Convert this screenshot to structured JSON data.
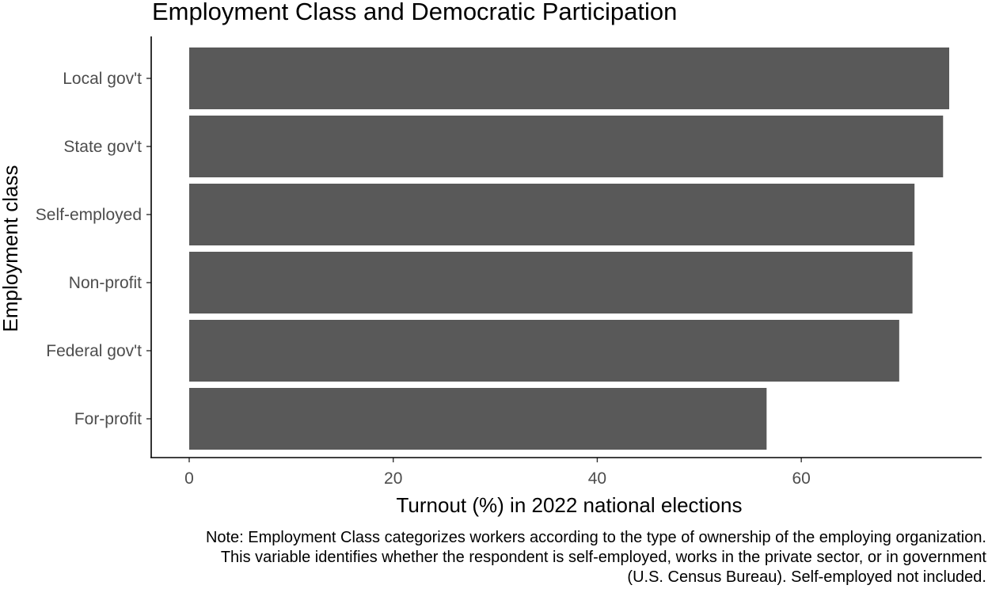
{
  "chart_data": {
    "type": "bar",
    "orientation": "horizontal",
    "title": "Employment Class and Democratic Participation",
    "xlabel": "Turnout (%) in 2022 national elections",
    "ylabel": "Employment class",
    "categories": [
      "Local gov't",
      "State gov't",
      "Self-employed",
      "Non-profit",
      "Federal gov't",
      "For-profit"
    ],
    "values": [
      74.5,
      73.9,
      71.1,
      70.9,
      69.6,
      56.6
    ],
    "xlim": [
      0,
      78
    ],
    "xticks": [
      0,
      20,
      40,
      60
    ],
    "xtick_labels": [
      "0",
      "20",
      "40",
      "60"
    ],
    "grid": false,
    "bar_color": "#595959",
    "caption": [
      "Note: Employment Class categorizes workers according to the type of ownership of the employing organization.",
      "This variable identifies whether the respondent is self-employed, works in the private sector, or in government",
      "(U.S. Census Bureau). Self-employed not included."
    ]
  }
}
